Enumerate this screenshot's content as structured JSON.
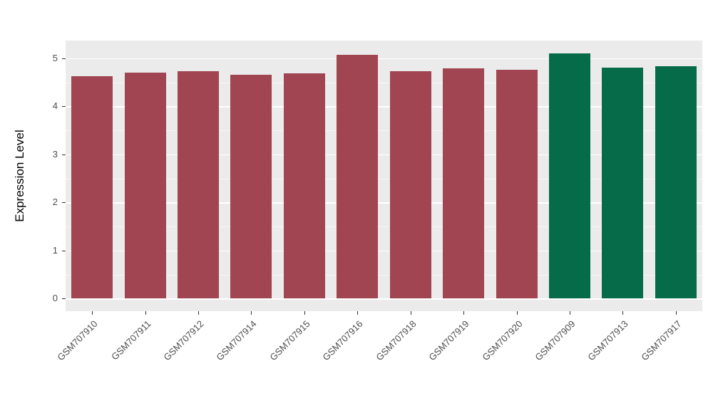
{
  "chart_data": {
    "type": "bar",
    "title": "",
    "xlabel": "",
    "ylabel": "Expression Level",
    "categories": [
      "GSM707910",
      "GSM707911",
      "GSM707912",
      "GSM707914",
      "GSM707915",
      "GSM707916",
      "GSM707918",
      "GSM707919",
      "GSM707920",
      "GSM707909",
      "GSM707913",
      "GSM707917"
    ],
    "values": [
      4.63,
      4.71,
      4.74,
      4.66,
      4.69,
      5.07,
      4.74,
      4.79,
      4.76,
      5.11,
      4.81,
      4.84
    ],
    "groups": [
      "red",
      "red",
      "red",
      "red",
      "red",
      "red",
      "red",
      "red",
      "red",
      "green",
      "green",
      "green"
    ],
    "group_colors": {
      "red": "#A04551",
      "green": "#066B49"
    },
    "y_ticks": [
      0,
      1,
      2,
      3,
      4,
      5
    ],
    "y_minor_ticks": [
      0.5,
      1.5,
      2.5,
      3.5,
      4.5
    ],
    "ylim": [
      0,
      5.11
    ],
    "y_range_expanded": [
      -0.26,
      5.37
    ],
    "legend": "none",
    "grid": "on",
    "panel_background": "#EBEBEB",
    "grid_color": "#FFFFFF"
  }
}
